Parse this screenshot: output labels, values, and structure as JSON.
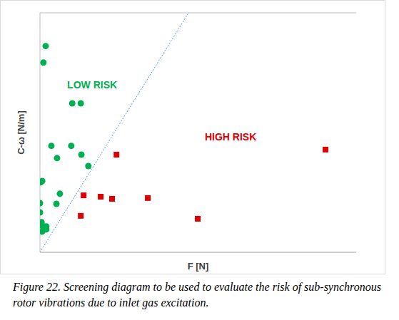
{
  "chart_data": {
    "type": "scatter",
    "x_label": "F [N]",
    "y_label": "C-ω [N/m]",
    "caption": "Figure 22. Screening diagram to be used to evaluate the risk of sub-synchronous rotor vibrations due to inlet gas excitation.",
    "xlim": [
      0,
      100
    ],
    "ylim": [
      0,
      9
    ],
    "yticks": [
      0,
      1,
      2,
      3,
      4,
      5,
      6,
      7,
      8,
      9
    ],
    "grid": true,
    "tick_labels": false,
    "series": [
      {
        "name": "LOW RISK",
        "color": "#00b050",
        "marker": "circle",
        "x": [
          1.8,
          1.1,
          10.2,
          12.9,
          3.6,
          9.9,
          5.4,
          13.1,
          15.3,
          0.7,
          0.2,
          6.3,
          0,
          5.2,
          0,
          0.5,
          0.7,
          2.0,
          2.0,
          0.7
        ],
        "values": [
          7.75,
          7.13,
          5.6,
          5.6,
          4.0,
          4.0,
          3.54,
          3.67,
          3.24,
          2.68,
          2.63,
          2.2,
          1.85,
          1.82,
          1.5,
          1.13,
          0.99,
          0.97,
          0.86,
          0.78
        ]
      },
      {
        "name": "HIGH RISK",
        "color": "#e00000",
        "marker": "square",
        "x": [
          24.2,
          90.3,
          13.8,
          19.2,
          22.8,
          34.1,
          12.9,
          49.9
        ],
        "values": [
          3.67,
          3.86,
          2.14,
          2.09,
          2.01,
          2.04,
          1.37,
          1.26
        ]
      }
    ],
    "threshold_line": {
      "x": [
        0,
        47
      ],
      "values": [
        0,
        9
      ],
      "color": "#4aa3c8",
      "line_style": "dotted"
    },
    "annotations": [
      {
        "text": "LOW RISK",
        "x": 16.5,
        "y": 6.3,
        "color": "#00b050"
      },
      {
        "text": "HIGH RISK",
        "x": 60.3,
        "y": 4.35,
        "color": "#e00000"
      }
    ]
  }
}
